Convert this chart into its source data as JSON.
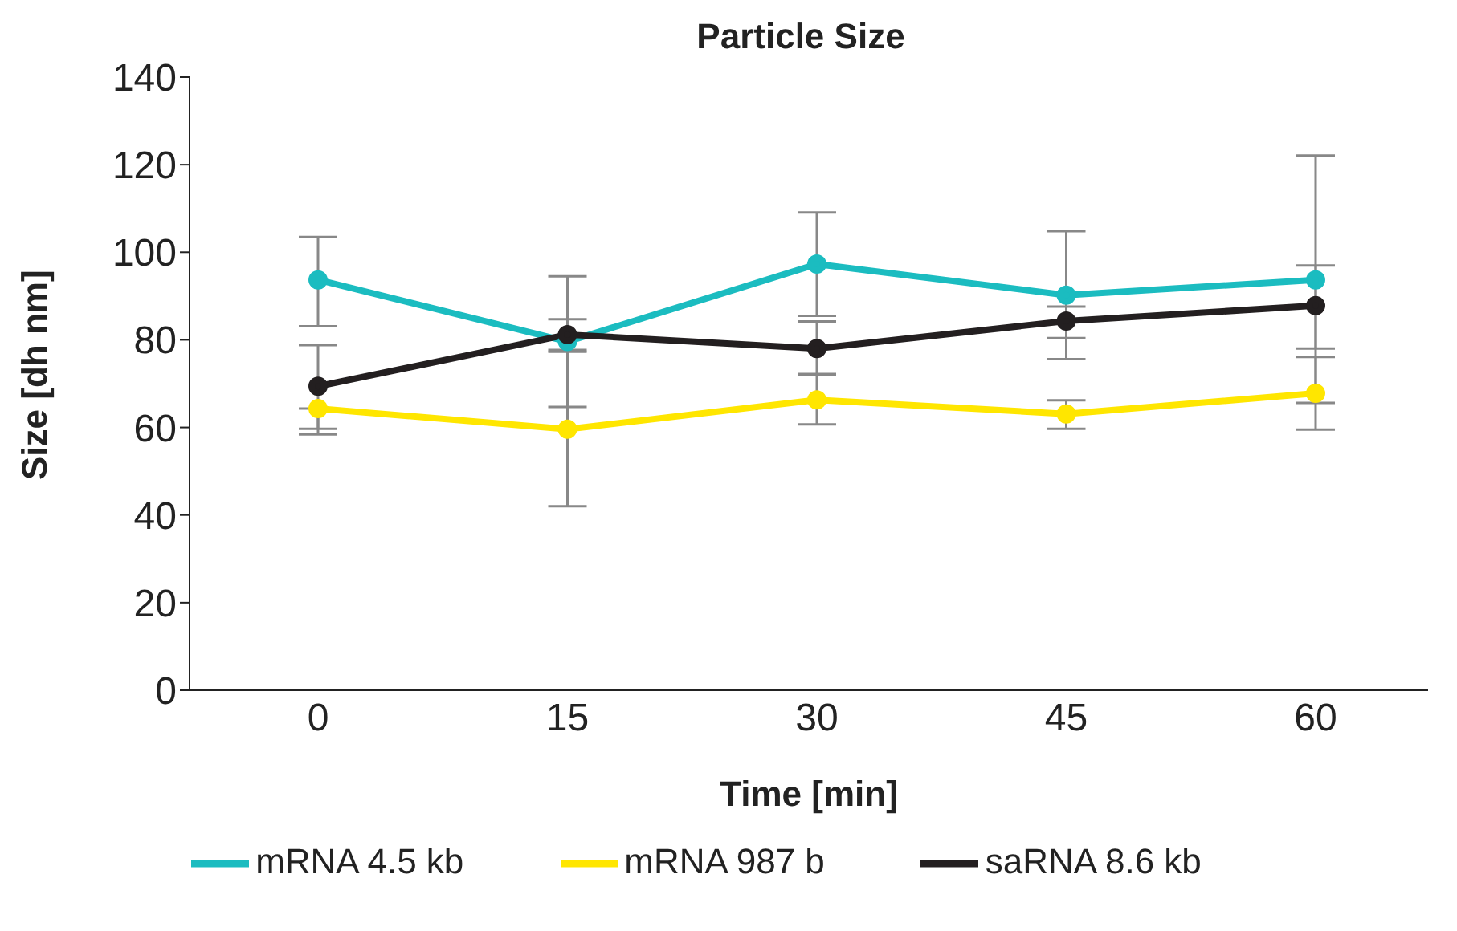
{
  "chart_data": {
    "type": "line",
    "title": "Particle Size",
    "xlabel": "Time [min]",
    "ylabel": "Size [dh nm]",
    "categories": [
      "0",
      "15",
      "30",
      "45",
      "60"
    ],
    "series": [
      {
        "name": "mRNA 4.5 kb",
        "color": "#1bbcc0",
        "values": [
          93.7,
          79.6,
          97.3,
          90.2,
          93.7
        ],
        "errors": [
          [
            83.1,
            103.5
          ],
          [
            64.7,
            94.5
          ],
          [
            85.5,
            109.1
          ],
          [
            75.6,
            104.8
          ],
          [
            65.6,
            122.1
          ]
        ]
      },
      {
        "name": "mRNA 987 b",
        "color": "#ffe600",
        "values": [
          64.3,
          59.6,
          66.3,
          63.1,
          67.8
        ],
        "errors": [
          [
            58.4,
            64.3
          ],
          [
            42,
            77.3
          ],
          [
            60.7,
            72
          ],
          [
            59.7,
            66.2
          ],
          [
            59.5,
            76.1
          ]
        ]
      },
      {
        "name": "saRNA 8.6 kb",
        "color": "#231f20",
        "values": [
          69.4,
          81.2,
          78,
          84.3,
          87.8
        ],
        "errors": [
          [
            59.7,
            78.8
          ],
          [
            77.7,
            84.7
          ],
          [
            72.2,
            84.2
          ],
          [
            80.4,
            87.6
          ],
          [
            78,
            97
          ]
        ]
      }
    ],
    "ylim": [
      0,
      140
    ],
    "yticks": [
      0,
      20,
      40,
      60,
      80,
      100,
      120,
      140
    ],
    "grid": false,
    "legend": "bottom",
    "marker": "circle",
    "line_style": "solid"
  }
}
